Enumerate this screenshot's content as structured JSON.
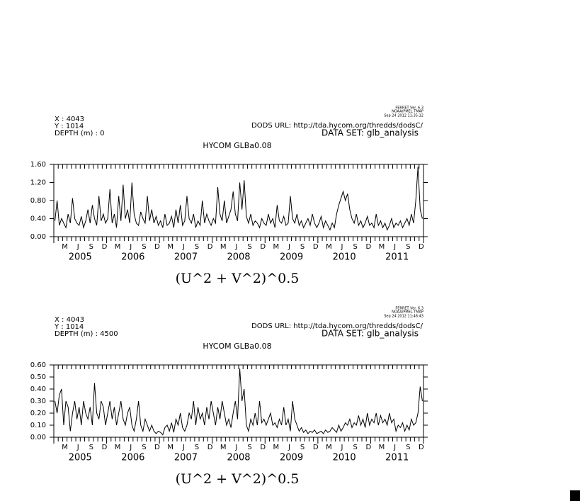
{
  "chart_data": [
    {
      "type": "line",
      "ferret_version": "FERRET Ver. 6.3",
      "lab": "NOAA/PMEL TMAP",
      "timestamp": "Sep 24 2012 11:35:12",
      "x_info": "X : 4043",
      "y_info": "Y : 1014",
      "depth_info": "DEPTH (m) : 0",
      "dods_url": "DODS URL: http://tda.hycom.org/thredds/dodsC/",
      "data_set": "DATA SET: glb_analysis",
      "title": "HYCOM GLBa0.08",
      "axis_label": "(U^2 + V^2)^0.5",
      "color": "#000000",
      "month_labels": [
        "M",
        "J",
        "S",
        "D",
        "M",
        "J",
        "S",
        "D",
        "M",
        "J",
        "S",
        "D",
        "M",
        "J",
        "S",
        "D",
        "M",
        "J",
        "S",
        "D",
        "M",
        "J",
        "S",
        "D",
        "M",
        "J",
        "S",
        "D"
      ],
      "year_labels": [
        "2005",
        "2006",
        "2007",
        "2008",
        "2009",
        "2010",
        "2011"
      ],
      "ylim": [
        0,
        1.6
      ],
      "yticks": [
        {
          "value": 0,
          "label": "0.00"
        },
        {
          "value": 0.4,
          "label": "0.40"
        },
        {
          "value": 0.8,
          "label": "0.80"
        },
        {
          "value": 1.2,
          "label": "1.20"
        },
        {
          "value": 1.6,
          "label": "1.60"
        }
      ],
      "values": [
        0.35,
        0.8,
        0.25,
        0.4,
        0.3,
        0.2,
        0.5,
        0.3,
        0.85,
        0.4,
        0.3,
        0.25,
        0.45,
        0.2,
        0.35,
        0.6,
        0.3,
        0.7,
        0.4,
        0.25,
        0.9,
        0.35,
        0.5,
        0.3,
        0.4,
        1.05,
        0.3,
        0.5,
        0.2,
        0.9,
        0.35,
        1.15,
        0.4,
        0.6,
        0.3,
        1.2,
        0.5,
        0.3,
        0.25,
        0.55,
        0.4,
        0.3,
        0.9,
        0.35,
        0.6,
        0.3,
        0.45,
        0.25,
        0.35,
        0.2,
        0.5,
        0.25,
        0.3,
        0.45,
        0.2,
        0.6,
        0.3,
        0.7,
        0.25,
        0.35,
        0.9,
        0.4,
        0.3,
        0.5,
        0.2,
        0.35,
        0.25,
        0.8,
        0.3,
        0.5,
        0.35,
        0.25,
        0.4,
        0.3,
        1.1,
        0.5,
        0.35,
        0.8,
        0.3,
        0.45,
        0.6,
        1.0,
        0.5,
        0.35,
        1.2,
        0.6,
        1.25,
        0.45,
        0.3,
        0.5,
        0.25,
        0.35,
        0.3,
        0.2,
        0.4,
        0.3,
        0.25,
        0.5,
        0.3,
        0.4,
        0.2,
        0.7,
        0.35,
        0.3,
        0.45,
        0.25,
        0.3,
        0.9,
        0.4,
        0.3,
        0.5,
        0.25,
        0.35,
        0.2,
        0.3,
        0.4,
        0.25,
        0.5,
        0.3,
        0.2,
        0.3,
        0.45,
        0.2,
        0.35,
        0.25,
        0.15,
        0.3,
        0.2,
        0.5,
        0.7,
        0.85,
        1.0,
        0.8,
        0.95,
        0.6,
        0.4,
        0.3,
        0.5,
        0.25,
        0.35,
        0.2,
        0.3,
        0.45,
        0.25,
        0.3,
        0.2,
        0.5,
        0.25,
        0.35,
        0.2,
        0.3,
        0.15,
        0.25,
        0.4,
        0.2,
        0.3,
        0.25,
        0.35,
        0.2,
        0.3,
        0.4,
        0.25,
        0.5,
        0.3,
        0.8,
        1.55,
        0.6,
        0.4
      ]
    },
    {
      "type": "line",
      "ferret_version": "FERRET Ver. 6.3",
      "lab": "NOAA/PMEL TMAP",
      "timestamp": "Sep 24 2012 11:46:43",
      "x_info": "X : 4043",
      "y_info": "Y : 1014",
      "depth_info": "DEPTH (m) : 4500",
      "dods_url": "DODS URL: http://tda.hycom.org/thredds/dodsC/",
      "data_set": "DATA SET: glb_analysis",
      "title": "HYCOM GLBa0.08",
      "axis_label": "(U^2 + V^2)^0.5",
      "color": "#000000",
      "month_labels": [
        "M",
        "J",
        "S",
        "D",
        "M",
        "J",
        "S",
        "D",
        "M",
        "J",
        "S",
        "D",
        "M",
        "J",
        "S",
        "D",
        "M",
        "J",
        "S",
        "D",
        "M",
        "J",
        "S",
        "D",
        "M",
        "J",
        "S",
        "D"
      ],
      "year_labels": [
        "2005",
        "2006",
        "2007",
        "2008",
        "2009",
        "2010",
        "2011"
      ],
      "ylim": [
        0,
        0.6
      ],
      "yticks": [
        {
          "value": 0,
          "label": "0.00"
        },
        {
          "value": 0.1,
          "label": "0.10"
        },
        {
          "value": 0.2,
          "label": "0.20"
        },
        {
          "value": 0.3,
          "label": "0.30"
        },
        {
          "value": 0.4,
          "label": "0.40"
        },
        {
          "value": 0.5,
          "label": "0.50"
        },
        {
          "value": 0.6,
          "label": "0.60"
        }
      ],
      "values": [
        0.3,
        0.2,
        0.35,
        0.4,
        0.1,
        0.3,
        0.25,
        0.05,
        0.2,
        0.3,
        0.15,
        0.25,
        0.1,
        0.3,
        0.2,
        0.15,
        0.25,
        0.1,
        0.45,
        0.2,
        0.15,
        0.3,
        0.25,
        0.1,
        0.2,
        0.3,
        0.15,
        0.25,
        0.1,
        0.2,
        0.3,
        0.15,
        0.1,
        0.2,
        0.25,
        0.1,
        0.05,
        0.15,
        0.3,
        0.1,
        0.05,
        0.15,
        0.1,
        0.05,
        0.1,
        0.05,
        0.03,
        0.05,
        0.04,
        0.02,
        0.08,
        0.1,
        0.05,
        0.12,
        0.04,
        0.15,
        0.1,
        0.2,
        0.08,
        0.05,
        0.1,
        0.2,
        0.15,
        0.3,
        0.1,
        0.25,
        0.15,
        0.2,
        0.1,
        0.25,
        0.15,
        0.3,
        0.2,
        0.1,
        0.25,
        0.15,
        0.3,
        0.2,
        0.1,
        0.15,
        0.08,
        0.2,
        0.3,
        0.15,
        0.57,
        0.3,
        0.4,
        0.1,
        0.05,
        0.15,
        0.1,
        0.2,
        0.1,
        0.3,
        0.12,
        0.15,
        0.1,
        0.15,
        0.2,
        0.1,
        0.12,
        0.08,
        0.15,
        0.1,
        0.25,
        0.1,
        0.15,
        0.05,
        0.3,
        0.15,
        0.1,
        0.05,
        0.08,
        0.04,
        0.06,
        0.03,
        0.05,
        0.04,
        0.06,
        0.03,
        0.04,
        0.05,
        0.03,
        0.06,
        0.04,
        0.05,
        0.08,
        0.06,
        0.04,
        0.1,
        0.05,
        0.08,
        0.12,
        0.1,
        0.15,
        0.08,
        0.12,
        0.1,
        0.18,
        0.1,
        0.15,
        0.08,
        0.2,
        0.1,
        0.15,
        0.12,
        0.2,
        0.1,
        0.18,
        0.12,
        0.15,
        0.1,
        0.2,
        0.12,
        0.15,
        0.05,
        0.1,
        0.08,
        0.12,
        0.05,
        0.1,
        0.06,
        0.15,
        0.1,
        0.12,
        0.2,
        0.42,
        0.3
      ]
    }
  ]
}
